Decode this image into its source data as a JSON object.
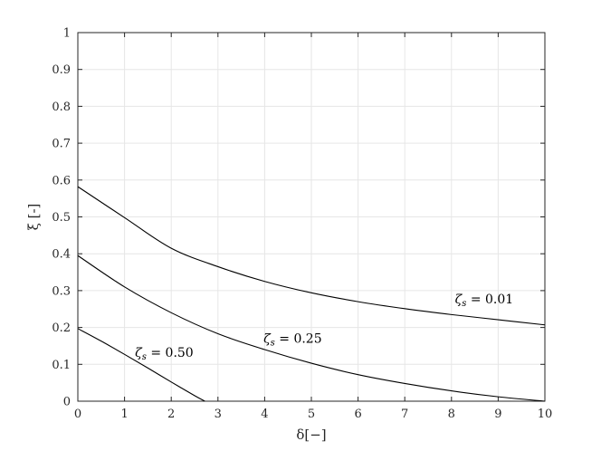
{
  "chart_data": {
    "type": "line",
    "xlabel": "δ[−]",
    "ylabel": "ξ [-]",
    "xlim": [
      0,
      10
    ],
    "ylim": [
      0,
      1
    ],
    "xticks": [
      0,
      1,
      2,
      3,
      4,
      5,
      6,
      7,
      8,
      9,
      10
    ],
    "yticks": [
      0,
      0.1,
      0.2,
      0.3,
      0.4,
      0.5,
      0.6,
      0.7,
      0.8,
      0.9,
      1
    ],
    "xtick_labels": [
      "0",
      "1",
      "2",
      "3",
      "4",
      "5",
      "6",
      "7",
      "8",
      "9",
      "10"
    ],
    "ytick_labels": [
      "0",
      "0.1",
      "0.2",
      "0.3",
      "0.4",
      "0.5",
      "0.6",
      "0.7",
      "0.8",
      "0.9",
      "1"
    ],
    "grid": true,
    "line_color": "#000000",
    "series": [
      {
        "name": "ζs = 0.01",
        "label_sym": "ζ",
        "label_sub": "s",
        "label_val": " = 0.01",
        "label_at": {
          "x": 8.7,
          "y": 0.265
        },
        "x": [
          0,
          1,
          2,
          3,
          4,
          5,
          6,
          7,
          8,
          9,
          10
        ],
        "y": [
          0.582,
          0.498,
          0.415,
          0.365,
          0.325,
          0.294,
          0.27,
          0.251,
          0.235,
          0.221,
          0.207
        ]
      },
      {
        "name": "ζs = 0.25",
        "label_sym": "ζ",
        "label_sub": "s",
        "label_val": " = 0.25",
        "label_at": {
          "x": 4.6,
          "y": 0.158
        },
        "x": [
          0,
          1,
          2,
          3,
          4,
          5,
          6,
          7,
          8,
          9,
          10
        ],
        "y": [
          0.395,
          0.31,
          0.24,
          0.183,
          0.14,
          0.103,
          0.072,
          0.048,
          0.028,
          0.012,
          0.0
        ]
      },
      {
        "name": "ζs = 0.50",
        "label_sym": "ζ",
        "label_sub": "s",
        "label_val": " = 0.50",
        "label_at": {
          "x": 1.85,
          "y": 0.12
        },
        "x": [
          0,
          0.5,
          1,
          1.5,
          2,
          2.5,
          2.72
        ],
        "y": [
          0.197,
          0.163,
          0.127,
          0.09,
          0.052,
          0.015,
          0.0
        ]
      }
    ]
  }
}
